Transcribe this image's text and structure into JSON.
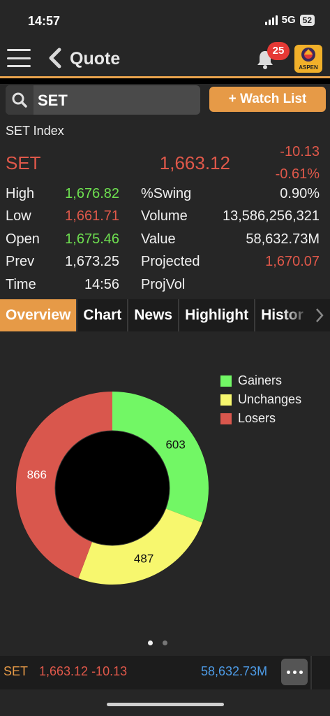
{
  "status": {
    "time": "14:57",
    "network": "5G",
    "battery": "52"
  },
  "header": {
    "title": "Quote",
    "notification_count": "25",
    "logo_text": "ASPEN"
  },
  "search": {
    "value": "SET"
  },
  "watch_list_label": "+ Watch List",
  "quote": {
    "index_name": "SET Index",
    "symbol": "SET",
    "price": "1,663.12",
    "change": "-10.13",
    "change_pct": "-0.61%",
    "rows": [
      {
        "l1": "High",
        "v1": "1,676.82",
        "l2": "%Swing",
        "v2": "0.90%"
      },
      {
        "l1": "Low",
        "v1": "1,661.71",
        "l2": "Volume",
        "v2": "13,586,256,321"
      },
      {
        "l1": "Open",
        "v1": "1,675.46",
        "l2": "Value",
        "v2": "58,632.73M"
      },
      {
        "l1": "Prev",
        "v1": "1,673.25",
        "l2": "Projected",
        "v2": "1,670.07"
      },
      {
        "l1": "Time",
        "v1": "14:56",
        "l2": "ProjVol",
        "v2": ""
      }
    ]
  },
  "tabs": [
    "Overview",
    "Chart",
    "News",
    "Highlight",
    "Histor"
  ],
  "chart_data": {
    "type": "pie",
    "categories": [
      "Gainers",
      "Unchanges",
      "Losers"
    ],
    "values": [
      603,
      487,
      866
    ],
    "colors": [
      "#72f765",
      "#f7f76e",
      "#d9574d"
    ],
    "legend": "top-right"
  },
  "bottom_bar": {
    "symbol": "SET",
    "price_change": "1,663.12 -10.13",
    "value": "58,632.73M"
  },
  "colors": {
    "accent": "#e69a47",
    "down": "#e0584a",
    "up": "#6ee050",
    "value_blue": "#4d9be6"
  }
}
